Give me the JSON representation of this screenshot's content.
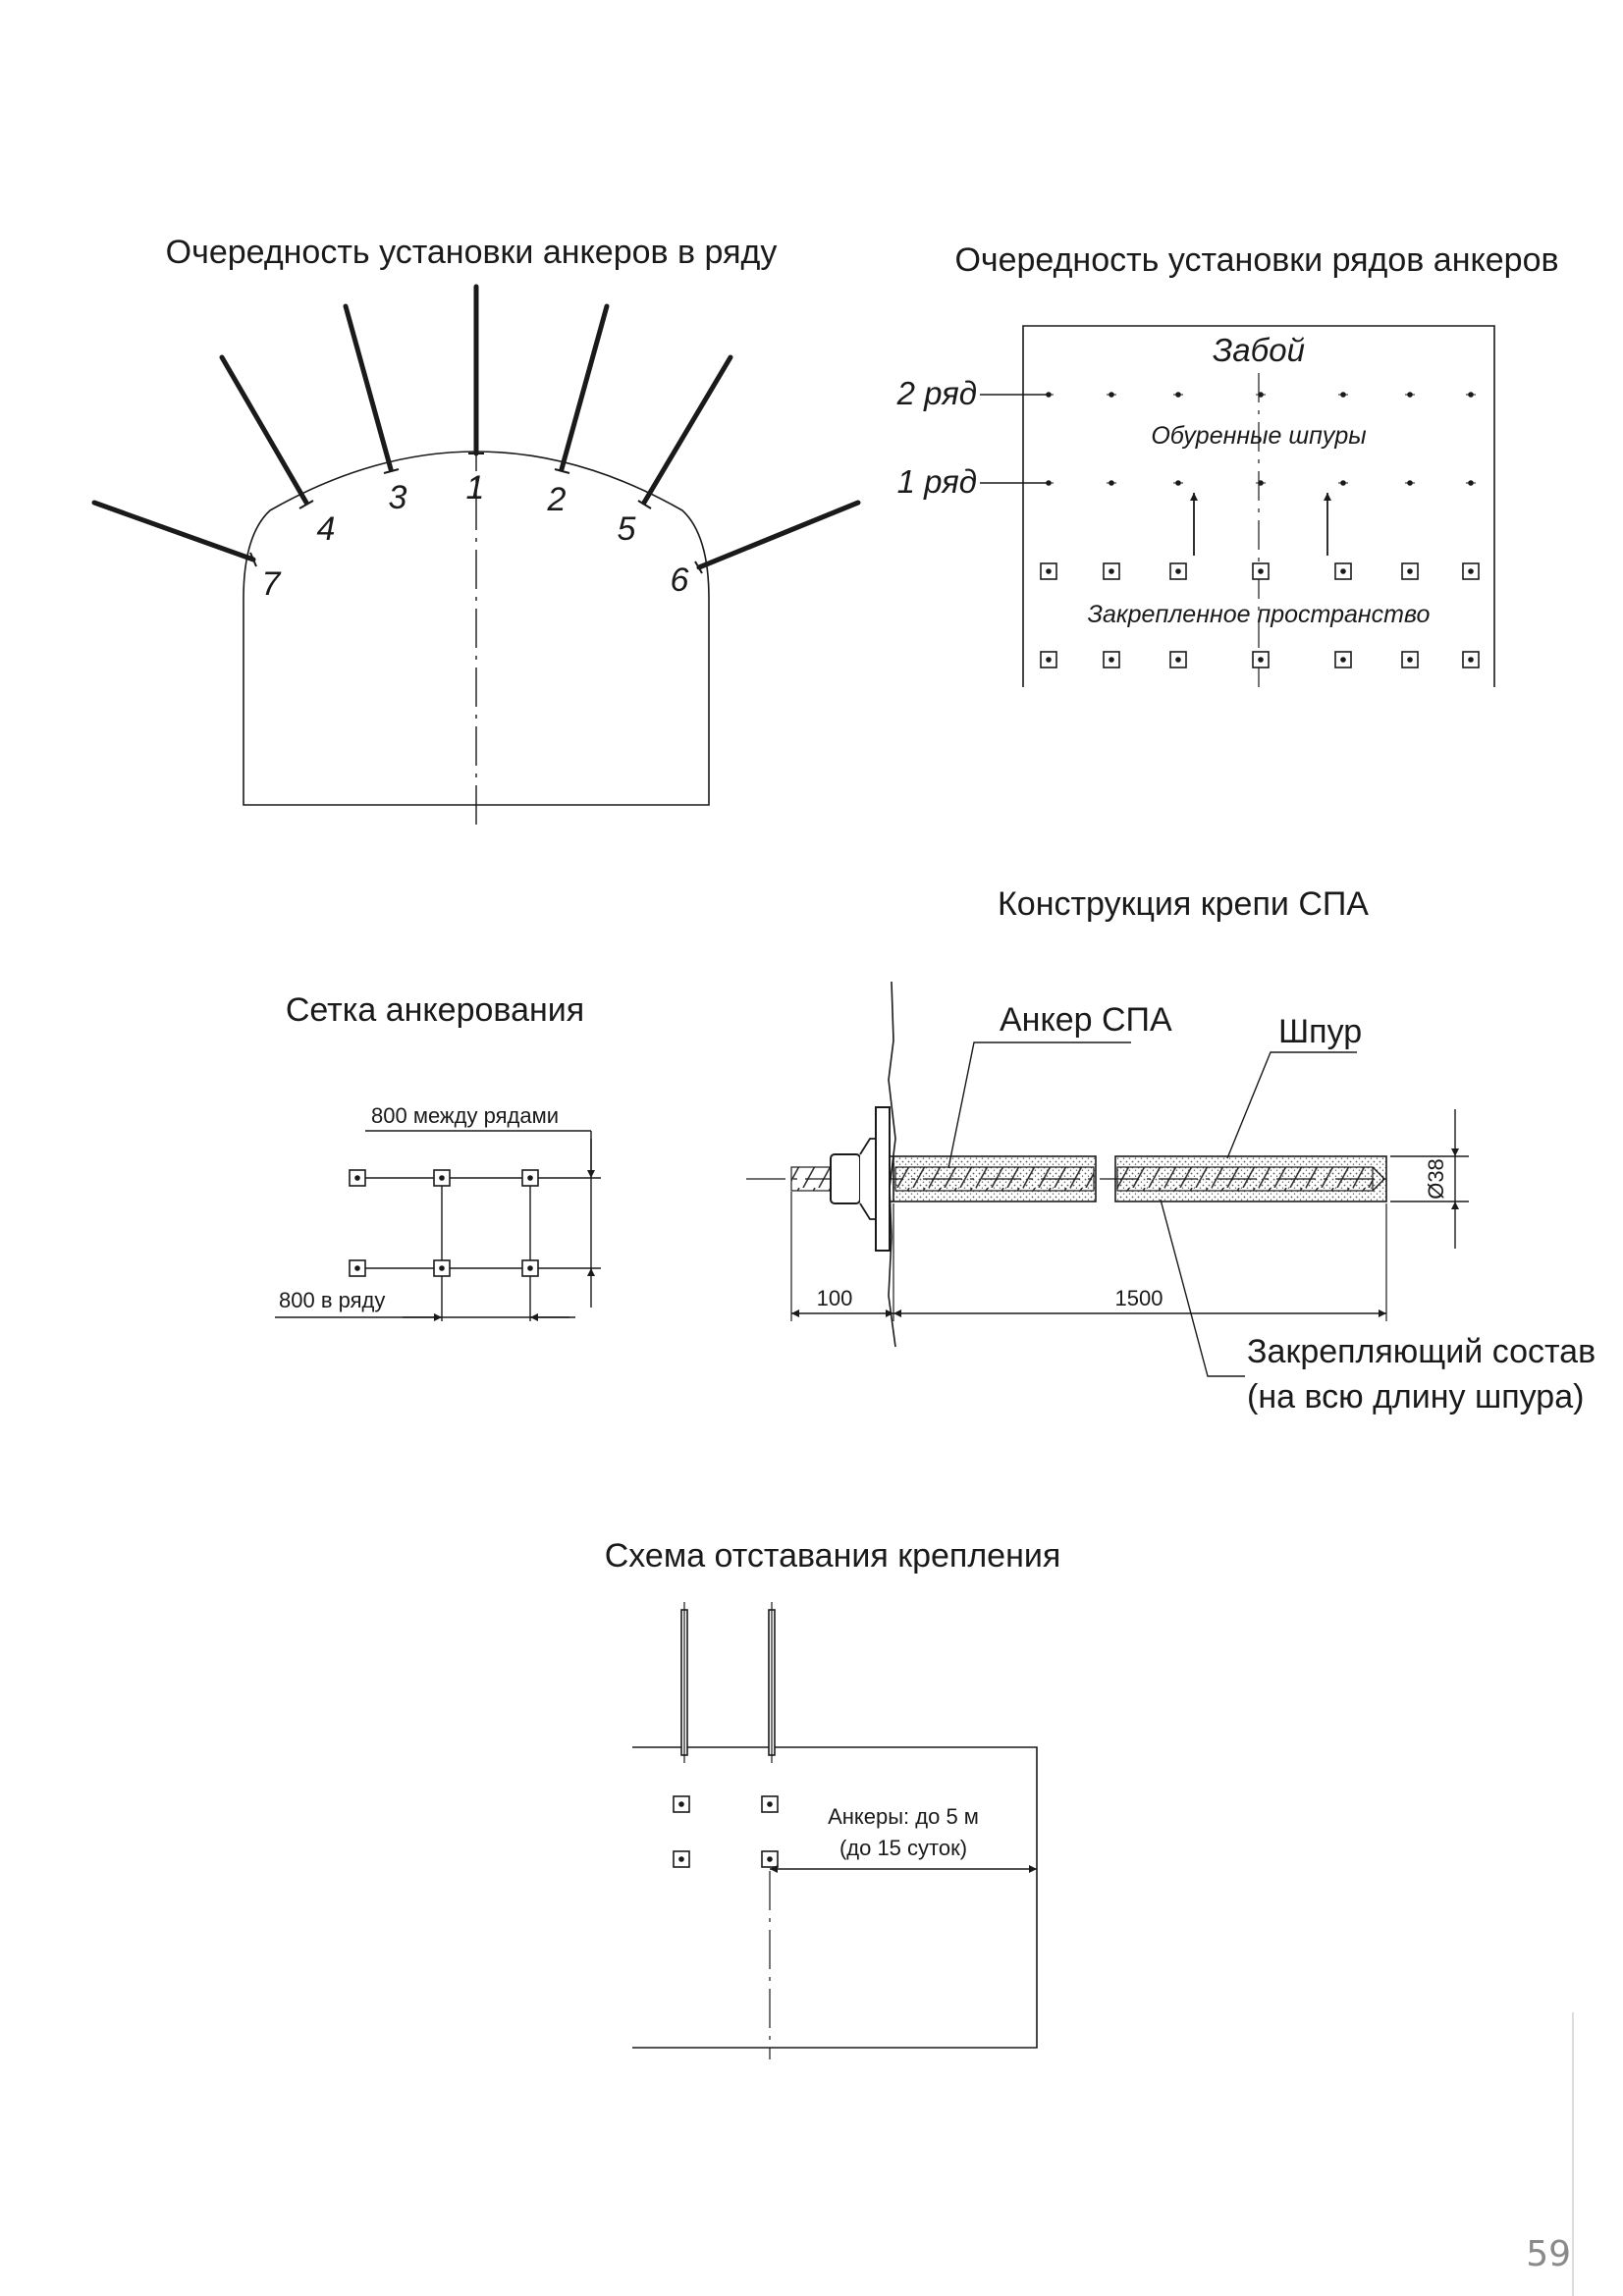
{
  "page_number": "59",
  "colors": {
    "ink": "#1a1a1a",
    "page_number": "#8a8a8a",
    "background": "#ffffff"
  },
  "fig1": {
    "title": "Очередность установки анкеров в ряду",
    "anchor_numbers": [
      "1",
      "2",
      "3",
      "4",
      "5",
      "6",
      "7"
    ]
  },
  "fig2": {
    "title": "Очередность установки рядов анкеров",
    "face_label": "Забой",
    "row2_label": "2 ряд",
    "row1_label": "1 ряд",
    "drilled_holes_label": "Обуренные шпуры",
    "secured_space_label": "Закрепленное пространство"
  },
  "fig3": {
    "title": "Сетка анкерования",
    "between_rows_label": "800 между рядами",
    "in_row_label": "800 в ряду"
  },
  "fig4": {
    "title": "Конструкция крепи СПА",
    "anchor_label": "Анкер СПА",
    "hole_label": "Шпур",
    "diameter_label": "Ø38",
    "dim_protrusion": "100",
    "dim_length": "1500",
    "compound_label_line1": "Закрепляющий состав",
    "compound_label_line2": "(на всю длину шпура)"
  },
  "fig5": {
    "title": "Схема отставания крепления",
    "lag_label_line1": "Анкеры: до 5 м",
    "lag_label_line2": "(до 15 суток)"
  }
}
